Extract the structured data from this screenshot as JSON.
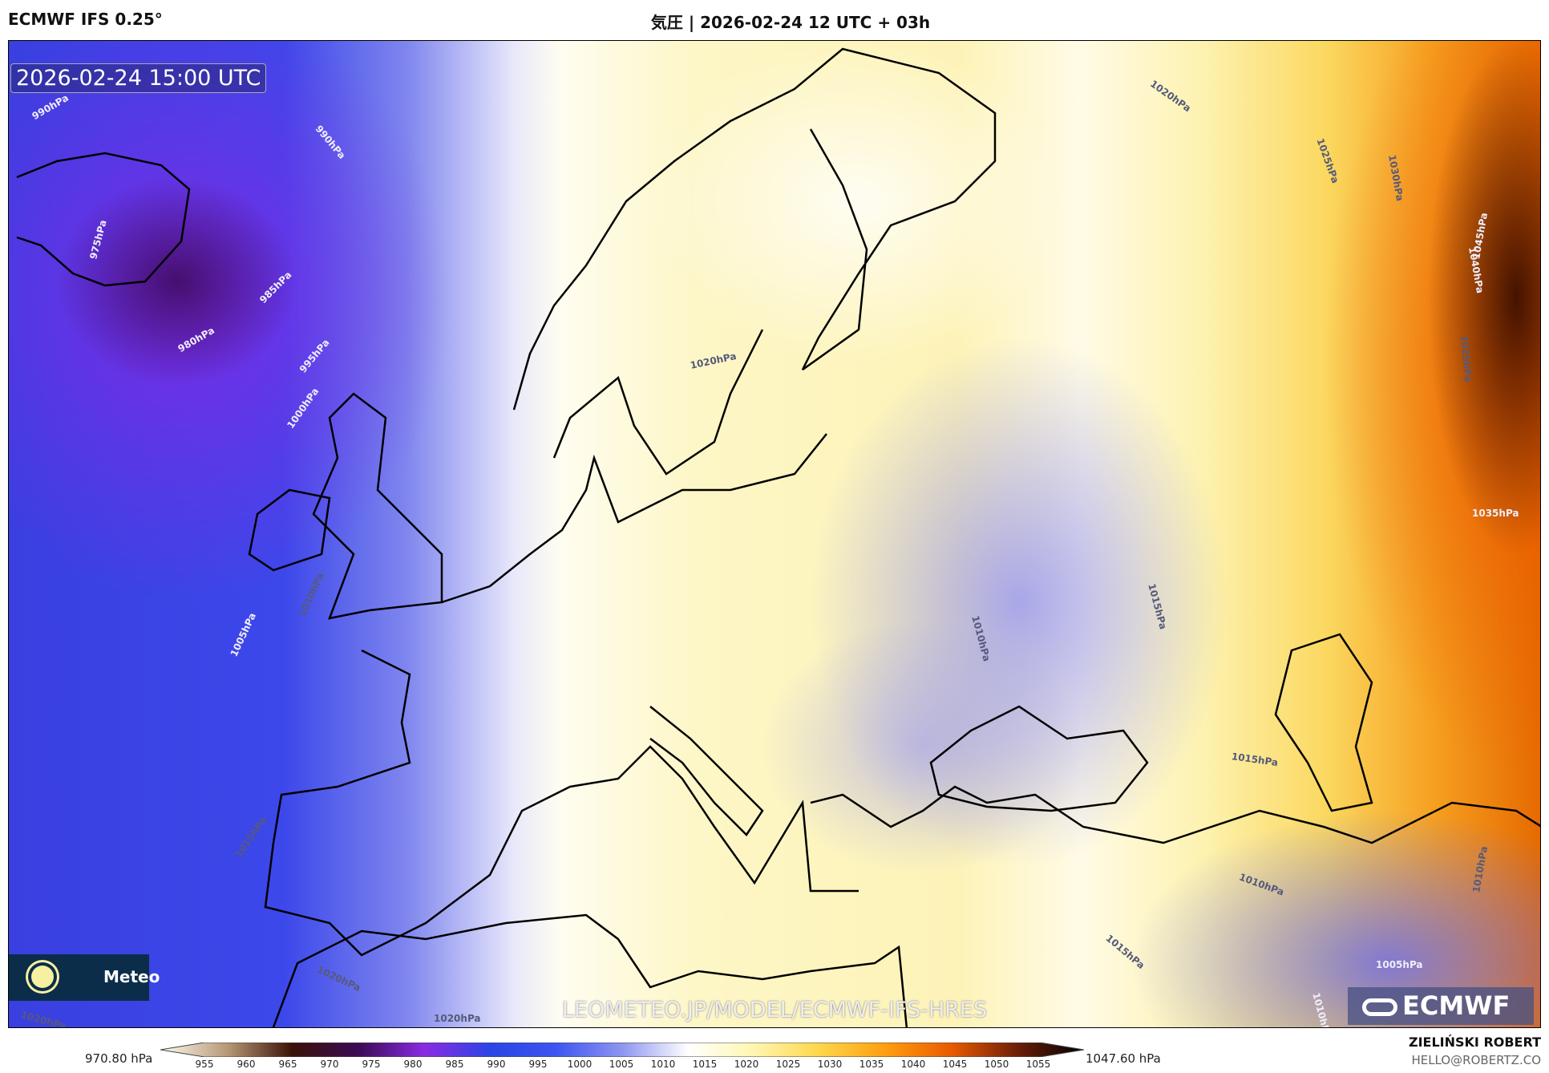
{
  "header": {
    "model": "ECMWF IFS 0.25°",
    "title": "気圧 | 2026-02-24 12 UTC + 03h"
  },
  "map": {
    "valid_time": "2026-02-24 15:00 UTC",
    "watermark": "LEOMETEO.JP/MODEL/ECMWF-IFS-HRES",
    "meteo_logo_text": "Meteo",
    "ecmwf_logo_text": "ECMWF",
    "variable": "mean sea level pressure",
    "contour_labels": [
      "990hPa",
      "990hPa",
      "975hPa",
      "985hPa",
      "980hPa",
      "995hPa",
      "1000hPa",
      "1010hPa",
      "1005hPa",
      "1015hPa",
      "1020hPa",
      "1020hPa",
      "1020hPa",
      "1020hPa",
      "1020hPa",
      "1025hPa",
      "1030hPa",
      "1045hPa",
      "1040hPa",
      "1025hPa",
      "1035hPa",
      "1015hPa",
      "1010hPa",
      "1015hPa",
      "1010hPa",
      "1010hPa",
      "1015hPa",
      "1005hPa",
      "1010hPa"
    ]
  },
  "colorbar": {
    "min_label": "970.80 hPa",
    "max_label": "1047.60 hPa",
    "ticks": [
      "955",
      "960",
      "965",
      "970",
      "975",
      "980",
      "985",
      "990",
      "995",
      "1000",
      "1005",
      "1010",
      "1015",
      "1020",
      "1025",
      "1030",
      "1035",
      "1040",
      "1045",
      "1050",
      "1055"
    ],
    "colors": [
      "#fdfbf0",
      "#b89a78",
      "#3a1208",
      "#3a0a55",
      "#8a2be2",
      "#2a45e6",
      "#3d55f0",
      "#8e95f0",
      "#ffffff",
      "#fff6b0",
      "#ffd64a",
      "#ff9d10",
      "#e85a00",
      "#6a1e08",
      "#000000"
    ]
  },
  "footer": {
    "author": "ZIELIŃSKI ROBERT",
    "email": "HELLO@ROBERTZ.CO"
  }
}
